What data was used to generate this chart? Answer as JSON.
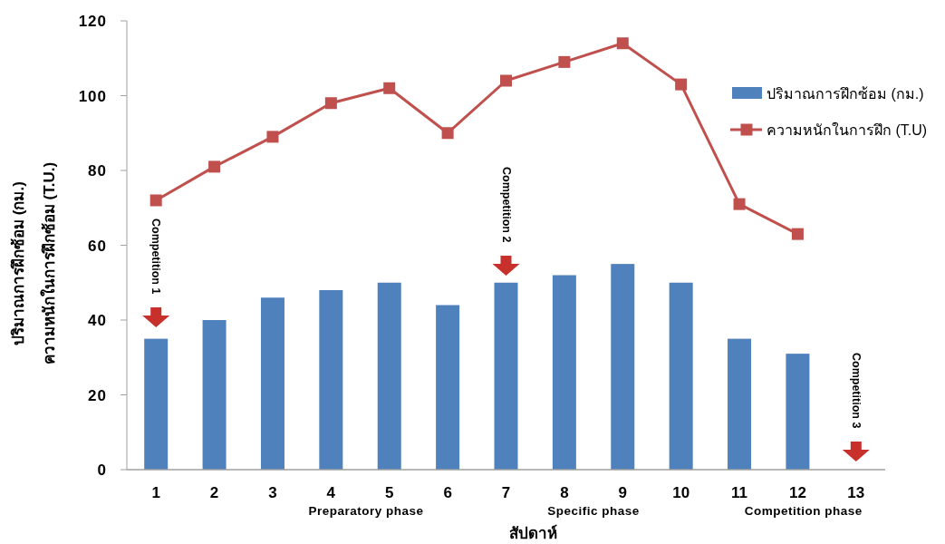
{
  "chart_data": {
    "type": "bar",
    "categories": [
      "1",
      "2",
      "3",
      "4",
      "5",
      "6",
      "7",
      "8",
      "9",
      "10",
      "11",
      "12",
      "13"
    ],
    "series": [
      {
        "name": "ปริมาณการฝึกซ้อม (กม.)",
        "color": "#4f81bd",
        "values": [
          35,
          40,
          46,
          48,
          50,
          44,
          50,
          52,
          55,
          50,
          35,
          31,
          null
        ]
      },
      {
        "name": "ความหนักในการฝึก (T.U)",
        "type": "line",
        "color": "#c0504d",
        "marker": "square",
        "values": [
          72,
          81,
          89,
          98,
          102,
          90,
          104,
          109,
          114,
          103,
          71,
          63,
          null
        ]
      }
    ],
    "xlabel": "สัปดาห์",
    "ylabel": "ปริมาณการฝึกซ้อม (กม.)\nความหนักในการฝึกซ้อม (T.U.)",
    "ylim": [
      0,
      120
    ],
    "yticks": [
      0,
      20,
      40,
      60,
      80,
      100,
      120
    ],
    "legend": "right",
    "annotations": [
      "Competition 1",
      "Competition 2",
      "Competition 3",
      "Preparatory phase",
      "Specific phase",
      "Competition phase"
    ]
  }
}
